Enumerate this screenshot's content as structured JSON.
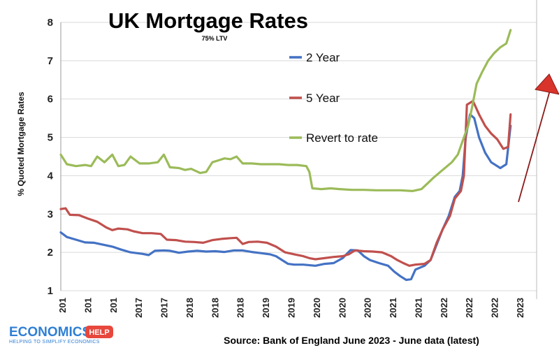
{
  "chart_data": {
    "type": "line",
    "title": "UK Mortgage Rates",
    "subtitle": "75% LTV",
    "ylabel": "% Quoted Mortgage Rates",
    "xlabel": "",
    "ylim": [
      1,
      8
    ],
    "yticks": [
      1,
      2,
      3,
      4,
      5,
      6,
      7,
      8
    ],
    "xlim": [
      2016.0,
      2023.7
    ],
    "x_tick_labels": [
      "201",
      "201",
      "201",
      "2017",
      "2017",
      "2018",
      "2018",
      "2018",
      "2019",
      "2019",
      "2020",
      "2020",
      "2020",
      "2021",
      "2021",
      "2022",
      "2022",
      "2022",
      "2023"
    ],
    "grid": "horizontal",
    "legend_position": "center-right",
    "source": "Source: Bank of England June 2023 - June data (latest)",
    "series": [
      {
        "name": "2 Year",
        "color": "#4472c4",
        "points": [
          [
            2016.0,
            2.52
          ],
          [
            2016.1,
            2.4
          ],
          [
            2016.25,
            2.33
          ],
          [
            2016.4,
            2.26
          ],
          [
            2016.55,
            2.25
          ],
          [
            2016.7,
            2.2
          ],
          [
            2016.85,
            2.15
          ],
          [
            2017.0,
            2.07
          ],
          [
            2017.15,
            2.0
          ],
          [
            2017.35,
            1.96
          ],
          [
            2017.45,
            1.93
          ],
          [
            2017.55,
            2.04
          ],
          [
            2017.7,
            2.05
          ],
          [
            2017.8,
            2.04
          ],
          [
            2017.95,
            1.99
          ],
          [
            2018.1,
            2.02
          ],
          [
            2018.25,
            2.04
          ],
          [
            2018.4,
            2.02
          ],
          [
            2018.55,
            2.03
          ],
          [
            2018.7,
            2.01
          ],
          [
            2018.85,
            2.05
          ],
          [
            2019.0,
            2.05
          ],
          [
            2019.15,
            2.01
          ],
          [
            2019.3,
            1.98
          ],
          [
            2019.45,
            1.95
          ],
          [
            2019.55,
            1.9
          ],
          [
            2019.65,
            1.8
          ],
          [
            2019.75,
            1.7
          ],
          [
            2019.85,
            1.68
          ],
          [
            2020.0,
            1.68
          ],
          [
            2020.2,
            1.65
          ],
          [
            2020.35,
            1.7
          ],
          [
            2020.5,
            1.72
          ],
          [
            2020.65,
            1.85
          ],
          [
            2020.78,
            2.06
          ],
          [
            2020.9,
            2.05
          ],
          [
            2021.0,
            1.9
          ],
          [
            2021.1,
            1.8
          ],
          [
            2021.25,
            1.72
          ],
          [
            2021.4,
            1.65
          ],
          [
            2021.5,
            1.5
          ],
          [
            2021.6,
            1.38
          ],
          [
            2021.7,
            1.28
          ],
          [
            2021.78,
            1.3
          ],
          [
            2021.85,
            1.55
          ],
          [
            2022.0,
            1.65
          ],
          [
            2022.1,
            1.8
          ],
          [
            2022.2,
            2.2
          ],
          [
            2022.3,
            2.6
          ],
          [
            2022.4,
            2.95
          ],
          [
            2022.5,
            3.45
          ],
          [
            2022.58,
            3.6
          ],
          [
            2022.63,
            4.0
          ],
          [
            2022.68,
            5.0
          ],
          [
            2022.75,
            5.6
          ],
          [
            2022.82,
            5.5
          ],
          [
            2022.9,
            5.0
          ],
          [
            2023.0,
            4.6
          ],
          [
            2023.1,
            4.35
          ],
          [
            2023.25,
            4.2
          ],
          [
            2023.35,
            4.3
          ],
          [
            2023.42,
            5.3
          ]
        ]
      },
      {
        "name": "5 Year",
        "color": "#c0504d",
        "points": [
          [
            2016.0,
            3.13
          ],
          [
            2016.08,
            3.15
          ],
          [
            2016.15,
            2.98
          ],
          [
            2016.3,
            2.97
          ],
          [
            2016.45,
            2.88
          ],
          [
            2016.6,
            2.8
          ],
          [
            2016.75,
            2.65
          ],
          [
            2016.85,
            2.58
          ],
          [
            2016.95,
            2.62
          ],
          [
            2017.1,
            2.6
          ],
          [
            2017.2,
            2.55
          ],
          [
            2017.35,
            2.5
          ],
          [
            2017.5,
            2.5
          ],
          [
            2017.65,
            2.48
          ],
          [
            2017.75,
            2.33
          ],
          [
            2017.9,
            2.32
          ],
          [
            2018.05,
            2.28
          ],
          [
            2018.2,
            2.27
          ],
          [
            2018.35,
            2.25
          ],
          [
            2018.5,
            2.32
          ],
          [
            2018.65,
            2.35
          ],
          [
            2018.8,
            2.37
          ],
          [
            2018.9,
            2.38
          ],
          [
            2019.0,
            2.22
          ],
          [
            2019.1,
            2.27
          ],
          [
            2019.25,
            2.28
          ],
          [
            2019.4,
            2.25
          ],
          [
            2019.55,
            2.15
          ],
          [
            2019.7,
            2.0
          ],
          [
            2019.85,
            1.95
          ],
          [
            2020.0,
            1.9
          ],
          [
            2020.1,
            1.85
          ],
          [
            2020.2,
            1.82
          ],
          [
            2020.35,
            1.85
          ],
          [
            2020.5,
            1.88
          ],
          [
            2020.65,
            1.9
          ],
          [
            2020.75,
            1.95
          ],
          [
            2020.85,
            2.05
          ],
          [
            2021.0,
            2.03
          ],
          [
            2021.15,
            2.02
          ],
          [
            2021.3,
            2.0
          ],
          [
            2021.45,
            1.9
          ],
          [
            2021.55,
            1.8
          ],
          [
            2021.65,
            1.72
          ],
          [
            2021.75,
            1.65
          ],
          [
            2021.85,
            1.68
          ],
          [
            2022.0,
            1.7
          ],
          [
            2022.1,
            1.8
          ],
          [
            2022.2,
            2.25
          ],
          [
            2022.3,
            2.6
          ],
          [
            2022.42,
            2.95
          ],
          [
            2022.5,
            3.4
          ],
          [
            2022.6,
            3.6
          ],
          [
            2022.65,
            4.0
          ],
          [
            2022.7,
            5.85
          ],
          [
            2022.8,
            5.95
          ],
          [
            2022.9,
            5.6
          ],
          [
            2023.0,
            5.3
          ],
          [
            2023.1,
            5.1
          ],
          [
            2023.2,
            4.95
          ],
          [
            2023.3,
            4.7
          ],
          [
            2023.38,
            4.75
          ],
          [
            2023.42,
            5.6
          ]
        ]
      },
      {
        "name": "Revert to rate",
        "color": "#9bbb59",
        "points": [
          [
            2016.0,
            4.55
          ],
          [
            2016.1,
            4.3
          ],
          [
            2016.25,
            4.25
          ],
          [
            2016.4,
            4.28
          ],
          [
            2016.5,
            4.25
          ],
          [
            2016.6,
            4.5
          ],
          [
            2016.72,
            4.35
          ],
          [
            2016.85,
            4.55
          ],
          [
            2016.95,
            4.25
          ],
          [
            2017.05,
            4.28
          ],
          [
            2017.15,
            4.5
          ],
          [
            2017.3,
            4.32
          ],
          [
            2017.45,
            4.32
          ],
          [
            2017.6,
            4.35
          ],
          [
            2017.7,
            4.55
          ],
          [
            2017.8,
            4.22
          ],
          [
            2017.95,
            4.2
          ],
          [
            2018.05,
            4.15
          ],
          [
            2018.15,
            4.18
          ],
          [
            2018.3,
            4.07
          ],
          [
            2018.4,
            4.1
          ],
          [
            2018.5,
            4.35
          ],
          [
            2018.6,
            4.4
          ],
          [
            2018.7,
            4.45
          ],
          [
            2018.8,
            4.43
          ],
          [
            2018.9,
            4.5
          ],
          [
            2019.0,
            4.32
          ],
          [
            2019.15,
            4.32
          ],
          [
            2019.3,
            4.3
          ],
          [
            2019.45,
            4.3
          ],
          [
            2019.6,
            4.3
          ],
          [
            2019.75,
            4.28
          ],
          [
            2019.9,
            4.28
          ],
          [
            2020.05,
            4.25
          ],
          [
            2020.1,
            4.1
          ],
          [
            2020.15,
            3.67
          ],
          [
            2020.3,
            3.65
          ],
          [
            2020.45,
            3.67
          ],
          [
            2020.6,
            3.65
          ],
          [
            2020.8,
            3.63
          ],
          [
            2021.0,
            3.63
          ],
          [
            2021.2,
            3.62
          ],
          [
            2021.4,
            3.62
          ],
          [
            2021.6,
            3.62
          ],
          [
            2021.8,
            3.6
          ],
          [
            2021.95,
            3.65
          ],
          [
            2022.05,
            3.8
          ],
          [
            2022.15,
            3.95
          ],
          [
            2022.3,
            4.15
          ],
          [
            2022.45,
            4.35
          ],
          [
            2022.55,
            4.55
          ],
          [
            2022.65,
            5.0
          ],
          [
            2022.72,
            5.3
          ],
          [
            2022.78,
            5.75
          ],
          [
            2022.86,
            6.4
          ],
          [
            2022.95,
            6.7
          ],
          [
            2023.05,
            7.0
          ],
          [
            2023.15,
            7.2
          ],
          [
            2023.25,
            7.35
          ],
          [
            2023.35,
            7.45
          ],
          [
            2023.42,
            7.8
          ]
        ]
      }
    ]
  },
  "logo": {
    "main": "ECONOMICS",
    "badge": "HELP",
    "tagline": "HELPING TO SIMPLIFY ECONOMICS",
    "brand_color": "#2f7fd4",
    "badge_color": "#e8473c"
  },
  "arrow": {
    "color": "#8b1a1a",
    "head_color": "#d9342b"
  }
}
